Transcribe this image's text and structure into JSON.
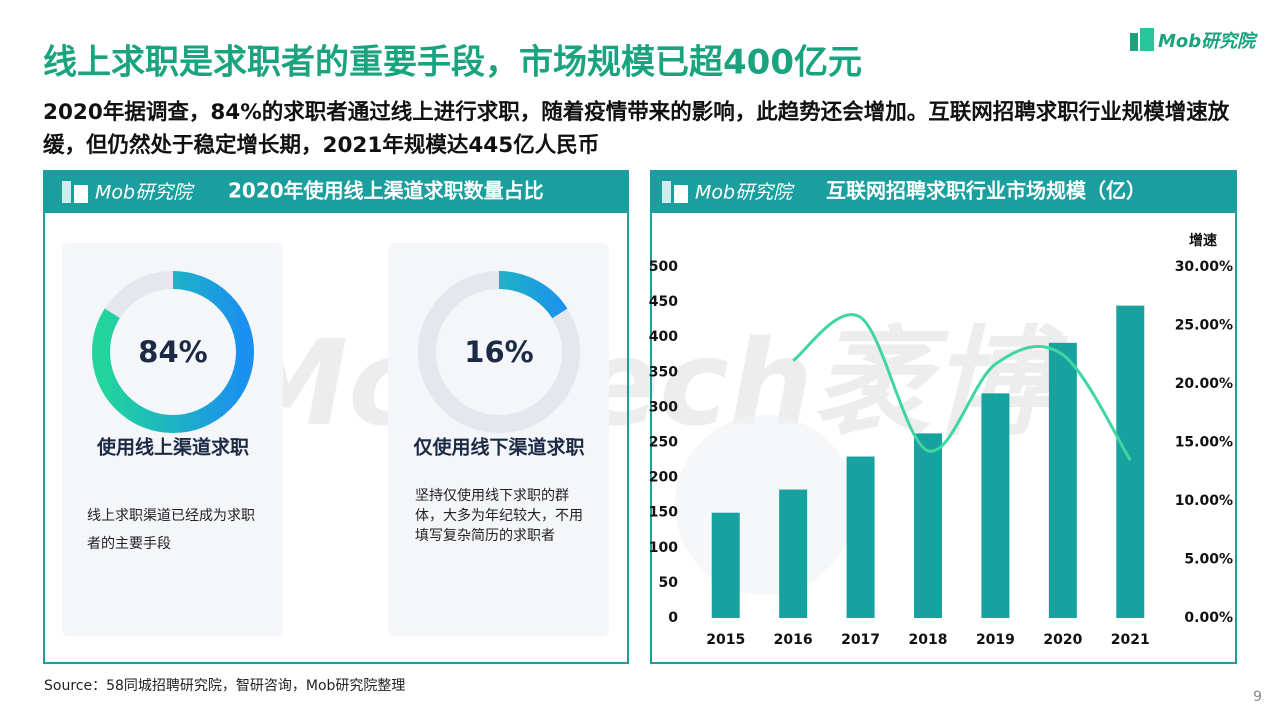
{
  "header": {
    "title": "线上求职是求职者的重要手段，市场规模已超400亿元",
    "subtitle": "2020年据调查，84%的求职者通过线上进行求职，随着疫情带来的影响，此趋势还会增加。互联网招聘求职行业规模增速放缓，但仍然处于稳定增长期，2021年规模达445亿人民币",
    "logo": "Mob研究院"
  },
  "watermark": "MobTech袤博",
  "chart_data": [
    {
      "type": "donut",
      "title": "2020年使用线上渠道求职数量占比",
      "categories": [
        "使用线上渠道求职",
        "仅使用线下渠道求职"
      ],
      "values": [
        84,
        16
      ],
      "value_labels": [
        "84%",
        "16%"
      ],
      "descriptions": [
        "线上求职渠道已经成为求职者的主要手段",
        "坚持仅使用线下求职的群体，大多为年纪较大，不用填写复杂简历的求职者"
      ],
      "color": [
        "#22d69a",
        "#1a8ff0"
      ],
      "track_color": "#e4e7ee"
    },
    {
      "type": "bar-line",
      "title": "互联网招聘求职行业市场规模（亿）",
      "categories": [
        "2015",
        "2016",
        "2017",
        "2018",
        "2019",
        "2020",
        "2021"
      ],
      "series": [
        {
          "type": "bar",
          "color": "#17a2a0",
          "values": [
            150,
            183,
            230,
            263,
            320,
            392,
            445
          ]
        },
        {
          "type": "line",
          "color": "#3fd6a0",
          "axis": "y2",
          "values": [
            null,
            22.0,
            25.7,
            14.3,
            21.7,
            22.5,
            13.5
          ]
        }
      ],
      "ylim": [
        0,
        500
      ],
      "yticks": [
        0,
        50,
        100,
        150,
        200,
        250,
        300,
        350,
        400,
        450,
        500
      ],
      "y2lim": [
        0,
        30
      ],
      "y2ticks": [
        {
          "value": 0,
          "label": "0.00%"
        },
        {
          "value": 5,
          "label": "5.00%"
        },
        {
          "value": 10,
          "label": "10.00%"
        },
        {
          "value": 15,
          "label": "15.00%"
        },
        {
          "value": 20,
          "label": "20.00%"
        },
        {
          "value": 25,
          "label": "25.00%"
        },
        {
          "value": 30,
          "label": "30.00%"
        }
      ],
      "y2_label": "增速"
    }
  ],
  "source": "Source：58同城招聘研究院，智研咨询，Mob研究院整理",
  "page_number": 9
}
